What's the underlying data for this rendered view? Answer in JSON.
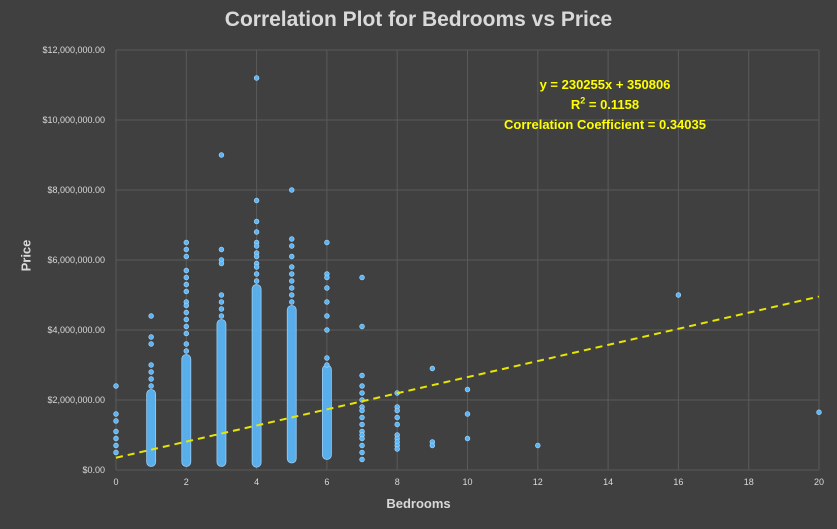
{
  "chart_data": {
    "type": "scatter",
    "title": "Correlation Plot for Bedrooms vs Price",
    "xlabel": "Bedrooms",
    "ylabel": "Price",
    "xlim": [
      0,
      20
    ],
    "ylim": [
      0,
      12000000
    ],
    "xticks": [
      0,
      2,
      4,
      6,
      8,
      10,
      12,
      14,
      16,
      18,
      20
    ],
    "yticks": [
      0,
      2000000,
      4000000,
      6000000,
      8000000,
      10000000,
      12000000
    ],
    "ytick_labels": [
      "$0.00",
      "$2,000,000.00",
      "$4,000,000.00",
      "$6,000,000.00",
      "$8,000,000.00",
      "$10,000,000.00",
      "$12,000,000.00"
    ],
    "grid": true,
    "trendline": {
      "slope": 230255,
      "intercept": 350806,
      "style": "dashed",
      "color": "#e6e600"
    },
    "annotation": {
      "equation": "y = 230255x + 350806",
      "r2_prefix": "R",
      "r2_sup": "2",
      "r2_rest": " = 0.1158",
      "corr": "Correlation Coefficient = 0.34035"
    },
    "marker_color": "#5ab4f5",
    "series": [
      {
        "points": [
          [
            0,
            2400000
          ],
          [
            0,
            1600000
          ],
          [
            0,
            1400000
          ],
          [
            0,
            1100000
          ],
          [
            0,
            900000
          ],
          [
            0,
            700000
          ],
          [
            0,
            500000
          ],
          [
            1,
            4400000
          ],
          [
            1,
            3800000
          ],
          [
            1,
            3600000
          ],
          [
            1,
            3000000
          ],
          [
            1,
            2800000
          ],
          [
            1,
            2600000
          ],
          [
            1,
            2400000
          ],
          [
            2,
            6500000
          ],
          [
            2,
            6300000
          ],
          [
            2,
            6100000
          ],
          [
            2,
            5700000
          ],
          [
            2,
            5500000
          ],
          [
            2,
            5300000
          ],
          [
            2,
            5100000
          ],
          [
            2,
            4800000
          ],
          [
            2,
            4700000
          ],
          [
            2,
            4500000
          ],
          [
            2,
            4300000
          ],
          [
            2,
            4100000
          ],
          [
            2,
            3900000
          ],
          [
            2,
            3600000
          ],
          [
            2,
            3400000
          ],
          [
            3,
            9000000
          ],
          [
            3,
            6300000
          ],
          [
            3,
            6000000
          ],
          [
            3,
            5900000
          ],
          [
            3,
            5000000
          ],
          [
            3,
            4800000
          ],
          [
            3,
            4600000
          ],
          [
            3,
            4400000
          ],
          [
            4,
            11200000
          ],
          [
            4,
            7700000
          ],
          [
            4,
            7100000
          ],
          [
            4,
            6800000
          ],
          [
            4,
            6500000
          ],
          [
            4,
            6400000
          ],
          [
            4,
            6200000
          ],
          [
            4,
            6100000
          ],
          [
            4,
            5900000
          ],
          [
            4,
            5800000
          ],
          [
            4,
            5600000
          ],
          [
            4,
            5400000
          ],
          [
            5,
            8000000
          ],
          [
            5,
            6600000
          ],
          [
            5,
            6400000
          ],
          [
            5,
            6100000
          ],
          [
            5,
            5800000
          ],
          [
            5,
            5600000
          ],
          [
            5,
            5400000
          ],
          [
            5,
            5200000
          ],
          [
            5,
            5000000
          ],
          [
            5,
            4800000
          ],
          [
            6,
            6500000
          ],
          [
            6,
            5600000
          ],
          [
            6,
            5500000
          ],
          [
            6,
            5200000
          ],
          [
            6,
            4800000
          ],
          [
            6,
            4400000
          ],
          [
            6,
            4000000
          ],
          [
            6,
            3200000
          ],
          [
            6,
            3000000
          ],
          [
            7,
            5500000
          ],
          [
            7,
            4100000
          ],
          [
            7,
            2700000
          ],
          [
            7,
            2400000
          ],
          [
            7,
            2200000
          ],
          [
            7,
            2000000
          ],
          [
            7,
            1800000
          ],
          [
            7,
            1700000
          ],
          [
            7,
            1500000
          ],
          [
            7,
            1300000
          ],
          [
            7,
            1100000
          ],
          [
            7,
            1000000
          ],
          [
            7,
            900000
          ],
          [
            7,
            700000
          ],
          [
            7,
            500000
          ],
          [
            7,
            300000
          ],
          [
            8,
            2200000
          ],
          [
            8,
            1800000
          ],
          [
            8,
            1700000
          ],
          [
            8,
            1500000
          ],
          [
            8,
            1300000
          ],
          [
            8,
            1000000
          ],
          [
            8,
            900000
          ],
          [
            8,
            800000
          ],
          [
            8,
            700000
          ],
          [
            8,
            600000
          ],
          [
            9,
            2900000
          ],
          [
            9,
            800000
          ],
          [
            9,
            700000
          ],
          [
            10,
            2300000
          ],
          [
            10,
            1600000
          ],
          [
            10,
            900000
          ],
          [
            12,
            700000
          ],
          [
            16,
            5000000
          ],
          [
            20,
            1650000
          ]
        ],
        "columns": [
          {
            "x": 1,
            "from": 100000,
            "to": 2300000
          },
          {
            "x": 2,
            "from": 100000,
            "to": 3300000
          },
          {
            "x": 3,
            "from": 100000,
            "to": 4300000
          },
          {
            "x": 4,
            "from": 80000,
            "to": 5300000
          },
          {
            "x": 5,
            "from": 200000,
            "to": 4700000
          },
          {
            "x": 6,
            "from": 300000,
            "to": 3000000
          }
        ]
      }
    ]
  }
}
